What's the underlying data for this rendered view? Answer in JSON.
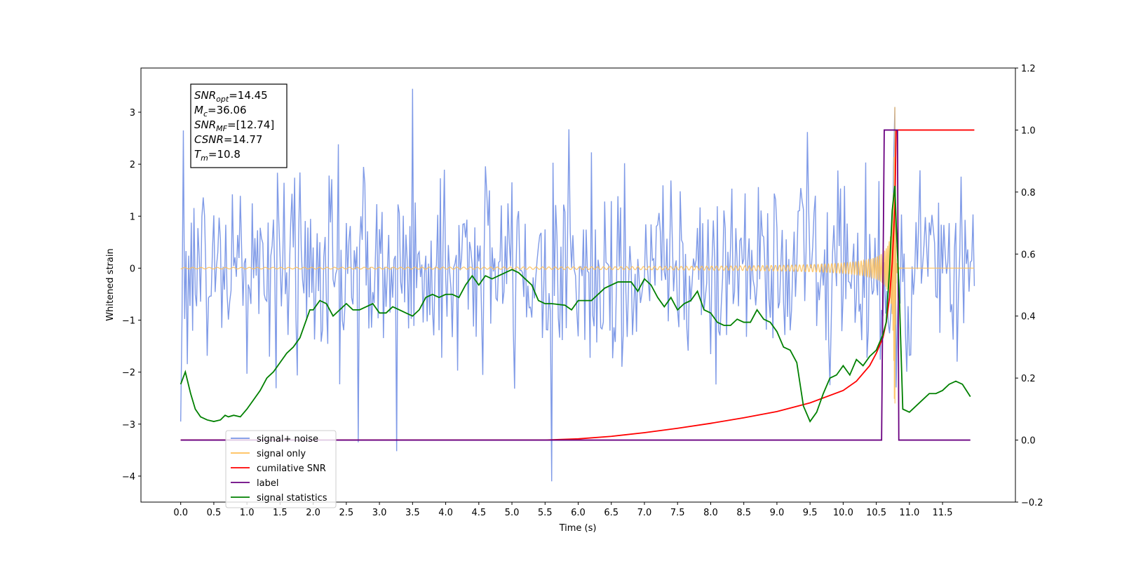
{
  "chart_data": {
    "type": "line",
    "xlabel": "Time (s)",
    "ylabel": "Whitened strain",
    "y2label": "",
    "xlim": [
      -0.6,
      12.6
    ],
    "ylim": [
      -4.5,
      3.85
    ],
    "y2lim": [
      -0.2,
      1.2
    ],
    "grid": false,
    "legend_position": "lower-left",
    "x_ticks": [
      "0.0",
      "0.5",
      "1.0",
      "1.5",
      "2.0",
      "2.5",
      "3.0",
      "3.5",
      "4.0",
      "4.5",
      "5.0",
      "5.5",
      "6.0",
      "6.5",
      "7.0",
      "7.5",
      "8.0",
      "8.5",
      "9.0",
      "9.5",
      "10.0",
      "10.5",
      "11.0",
      "11.5"
    ],
    "y_ticks": [
      "−4",
      "−3",
      "−2",
      "−1",
      "0",
      "1",
      "2",
      "3"
    ],
    "y2_ticks": [
      "−0.2",
      "0.0",
      "0.2",
      "0.4",
      "0.6",
      "0.8",
      "1.0",
      "1.2"
    ],
    "annotation": [
      {
        "base": "SNR",
        "sub": "opt",
        "value": "=14.45"
      },
      {
        "base": "M",
        "sub": "c",
        "value": "=36.06"
      },
      {
        "base": "SNR",
        "sub": "MF",
        "value": "=[12.74]"
      },
      {
        "base": "CSNR",
        "sub": "",
        "value": "=14.77"
      },
      {
        "base": "T",
        "sub": "m",
        "value": "=10.8"
      }
    ],
    "legend": [
      {
        "label": "signal+ noise",
        "color": "#7895e6"
      },
      {
        "label": "signal only",
        "color": "#ffbe55"
      },
      {
        "label": "cumilative SNR",
        "color": "#ff0000"
      },
      {
        "label": "label",
        "color": "#6a0080"
      },
      {
        "label": "signal statistics",
        "color": "#008000"
      }
    ],
    "series": [
      {
        "name": "signal+ noise",
        "axis": "left",
        "color": "#7895e6",
        "description": "noisy whitened strain, amplitude approx +/-2 with spikes to +3.45 and -4.1",
        "dt": 0.02,
        "t_start": 0.0,
        "t_end": 11.98,
        "peaks": [
          [
            3.5,
            3.45
          ],
          [
            10.78,
            3.1
          ],
          [
            0.03,
            2.65
          ]
        ],
        "troughs": [
          [
            5.6,
            -4.1
          ],
          [
            3.25,
            -3.52
          ],
          [
            2.68,
            -3.35
          ],
          [
            0.0,
            -2.95
          ]
        ]
      },
      {
        "name": "signal only",
        "axis": "left",
        "color": "#ffbe55",
        "description": "chirp waveform, flat until ~7.4 s, growing to peak near 10.78 s then ringdown",
        "t_start": 0.0,
        "t_end": 11.98,
        "merger_time": 10.78,
        "peak_amplitude": 3.1
      },
      {
        "name": "cumilative SNR",
        "axis": "right",
        "color": "#ff0000",
        "x": [
          0.0,
          5.5,
          6.0,
          6.5,
          7.0,
          7.5,
          8.0,
          8.5,
          9.0,
          9.5,
          10.0,
          10.2,
          10.4,
          10.5,
          10.6,
          10.65,
          10.7,
          10.74,
          10.78,
          10.8,
          11.98
        ],
        "y": [
          0.0,
          0.0,
          0.004,
          0.012,
          0.024,
          0.038,
          0.054,
          0.072,
          0.092,
          0.12,
          0.16,
          0.19,
          0.24,
          0.28,
          0.33,
          0.38,
          0.46,
          0.57,
          0.75,
          1.0,
          1.0
        ]
      },
      {
        "name": "label",
        "axis": "right",
        "color": "#6a0080",
        "x": [
          0.0,
          10.58,
          10.62,
          10.82,
          10.84,
          11.92
        ],
        "y": [
          0.0,
          0.0,
          1.0,
          1.0,
          0.0,
          0.0
        ]
      },
      {
        "name": "signal statistics",
        "axis": "right",
        "color": "#008000",
        "x": [
          0.0,
          0.07,
          0.15,
          0.22,
          0.3,
          0.4,
          0.5,
          0.6,
          0.67,
          0.72,
          0.8,
          0.9,
          1.0,
          1.1,
          1.2,
          1.3,
          1.4,
          1.5,
          1.6,
          1.7,
          1.8,
          1.85,
          1.9,
          1.95,
          2.0,
          2.1,
          2.2,
          2.3,
          2.4,
          2.5,
          2.6,
          2.7,
          2.8,
          2.9,
          3.0,
          3.1,
          3.2,
          3.3,
          3.4,
          3.5,
          3.6,
          3.7,
          3.8,
          3.9,
          4.0,
          4.1,
          4.2,
          4.3,
          4.4,
          4.5,
          4.6,
          4.7,
          4.8,
          4.9,
          5.0,
          5.1,
          5.2,
          5.3,
          5.4,
          5.5,
          5.6,
          5.8,
          5.9,
          6.0,
          6.2,
          6.4,
          6.6,
          6.8,
          6.9,
          7.0,
          7.1,
          7.2,
          7.3,
          7.4,
          7.5,
          7.6,
          7.7,
          7.8,
          7.9,
          8.0,
          8.1,
          8.2,
          8.3,
          8.4,
          8.5,
          8.6,
          8.7,
          8.8,
          8.9,
          9.0,
          9.1,
          9.2,
          9.3,
          9.4,
          9.5,
          9.6,
          9.7,
          9.8,
          9.9,
          10.0,
          10.1,
          10.2,
          10.3,
          10.4,
          10.5,
          10.6,
          10.65,
          10.7,
          10.74,
          10.78,
          10.8,
          10.85,
          10.9,
          11.0,
          11.1,
          11.2,
          11.3,
          11.4,
          11.5,
          11.6,
          11.7,
          11.8,
          11.92
        ],
        "y": [
          0.18,
          0.22,
          0.15,
          0.1,
          0.075,
          0.065,
          0.06,
          0.065,
          0.08,
          0.075,
          0.08,
          0.075,
          0.1,
          0.13,
          0.16,
          0.2,
          0.22,
          0.25,
          0.28,
          0.3,
          0.33,
          0.36,
          0.39,
          0.42,
          0.42,
          0.45,
          0.44,
          0.4,
          0.42,
          0.44,
          0.42,
          0.42,
          0.43,
          0.44,
          0.41,
          0.41,
          0.43,
          0.42,
          0.41,
          0.4,
          0.42,
          0.46,
          0.47,
          0.46,
          0.47,
          0.47,
          0.46,
          0.5,
          0.53,
          0.5,
          0.53,
          0.52,
          0.53,
          0.54,
          0.55,
          0.54,
          0.52,
          0.5,
          0.45,
          0.44,
          0.44,
          0.435,
          0.42,
          0.45,
          0.45,
          0.49,
          0.51,
          0.51,
          0.48,
          0.52,
          0.5,
          0.46,
          0.43,
          0.46,
          0.42,
          0.44,
          0.45,
          0.48,
          0.42,
          0.41,
          0.38,
          0.37,
          0.37,
          0.39,
          0.38,
          0.38,
          0.42,
          0.39,
          0.38,
          0.35,
          0.3,
          0.29,
          0.25,
          0.11,
          0.06,
          0.09,
          0.15,
          0.2,
          0.21,
          0.24,
          0.21,
          0.26,
          0.24,
          0.27,
          0.29,
          0.34,
          0.38,
          0.55,
          0.74,
          0.82,
          0.7,
          0.45,
          0.1,
          0.09,
          0.11,
          0.13,
          0.15,
          0.15,
          0.16,
          0.18,
          0.19,
          0.18,
          0.14
        ]
      }
    ]
  }
}
